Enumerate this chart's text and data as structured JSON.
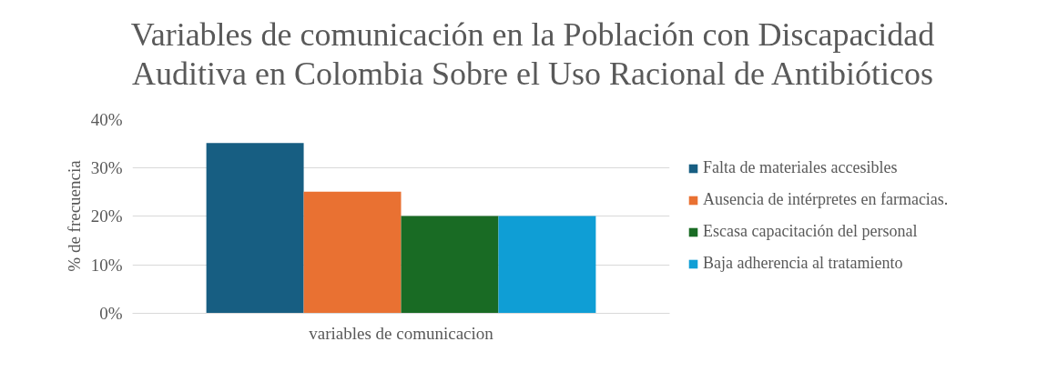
{
  "chart_data": {
    "type": "bar",
    "title": "Variables de comunicación en la Población con Discapacidad Auditiva en Colombia Sobre el Uso Racional de Antibióticos",
    "ylabel": "% de frecuencia",
    "categories": [
      "variables de comunicacion"
    ],
    "series": [
      {
        "name": "Falta de materiales accesibles",
        "color": "#175e82",
        "values": [
          35
        ]
      },
      {
        "name": "Ausencia de intérpretes en farmacias.",
        "color": "#e97132",
        "values": [
          25
        ]
      },
      {
        "name": "Escasa capacitación del personal",
        "color": "#196b24",
        "values": [
          20
        ]
      },
      {
        "name": "Baja adherencia al tratamiento",
        "color": "#0f9ed5",
        "values": [
          20
        ]
      }
    ],
    "ylim": [
      0,
      40
    ],
    "yticks": [
      {
        "value": 0,
        "label": "0%"
      },
      {
        "value": 10,
        "label": "10%"
      },
      {
        "value": 20,
        "label": "20%"
      },
      {
        "value": 30,
        "label": "30%"
      },
      {
        "value": 40,
        "label": "40%"
      }
    ],
    "grid": "y",
    "legend": "right"
  }
}
